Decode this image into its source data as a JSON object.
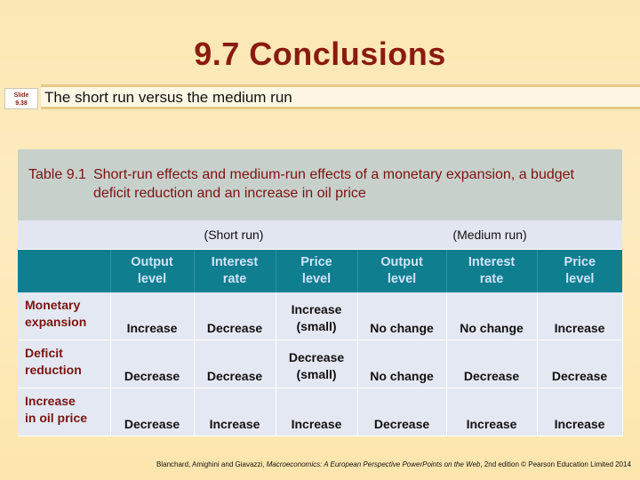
{
  "title": "9.7  Conclusions",
  "slide": {
    "label": "Slide",
    "number": "9.38"
  },
  "subtitle": "The short run versus the medium run",
  "table": {
    "caption_label": "Table 9.1",
    "caption_text": "Short-run effects and medium-run effects of a monetary expansion, a budget deficit reduction and an increase in oil price",
    "short_run_label": "(Short run)",
    "medium_run_label": "(Medium run)",
    "headers": [
      [
        "Output",
        "level"
      ],
      [
        "Interest",
        "rate"
      ],
      [
        "Price",
        "level"
      ],
      [
        "Output",
        "level"
      ],
      [
        "Interest",
        "rate"
      ],
      [
        "Price",
        "level"
      ]
    ],
    "rows": [
      {
        "label": [
          "Monetary",
          "expansion"
        ],
        "cells": [
          [
            "Increase"
          ],
          [
            "Decrease"
          ],
          [
            "Increase",
            "(small)"
          ],
          [
            "No change"
          ],
          [
            "No change"
          ],
          [
            "Increase"
          ]
        ]
      },
      {
        "label": [
          "Deficit",
          "reduction"
        ],
        "cells": [
          [
            "Decrease"
          ],
          [
            "Decrease"
          ],
          [
            "Decrease",
            "(small)"
          ],
          [
            "No change"
          ],
          [
            "Decrease"
          ],
          [
            "Decrease"
          ]
        ]
      },
      {
        "label": [
          "Increase",
          "in oil price"
        ],
        "cells": [
          [
            "Decrease"
          ],
          [
            "Increase"
          ],
          [
            "Increase"
          ],
          [
            "Decrease"
          ],
          [
            "Increase"
          ],
          [
            "Increase"
          ]
        ]
      }
    ]
  },
  "footer": {
    "authors": "Blanchard, Amighini and Giavazzi, ",
    "book": "Macroeconomics: A European Perspective PowerPoints on the Web",
    "edition": ", 2nd edition © Pearson Education Limited 2014"
  }
}
